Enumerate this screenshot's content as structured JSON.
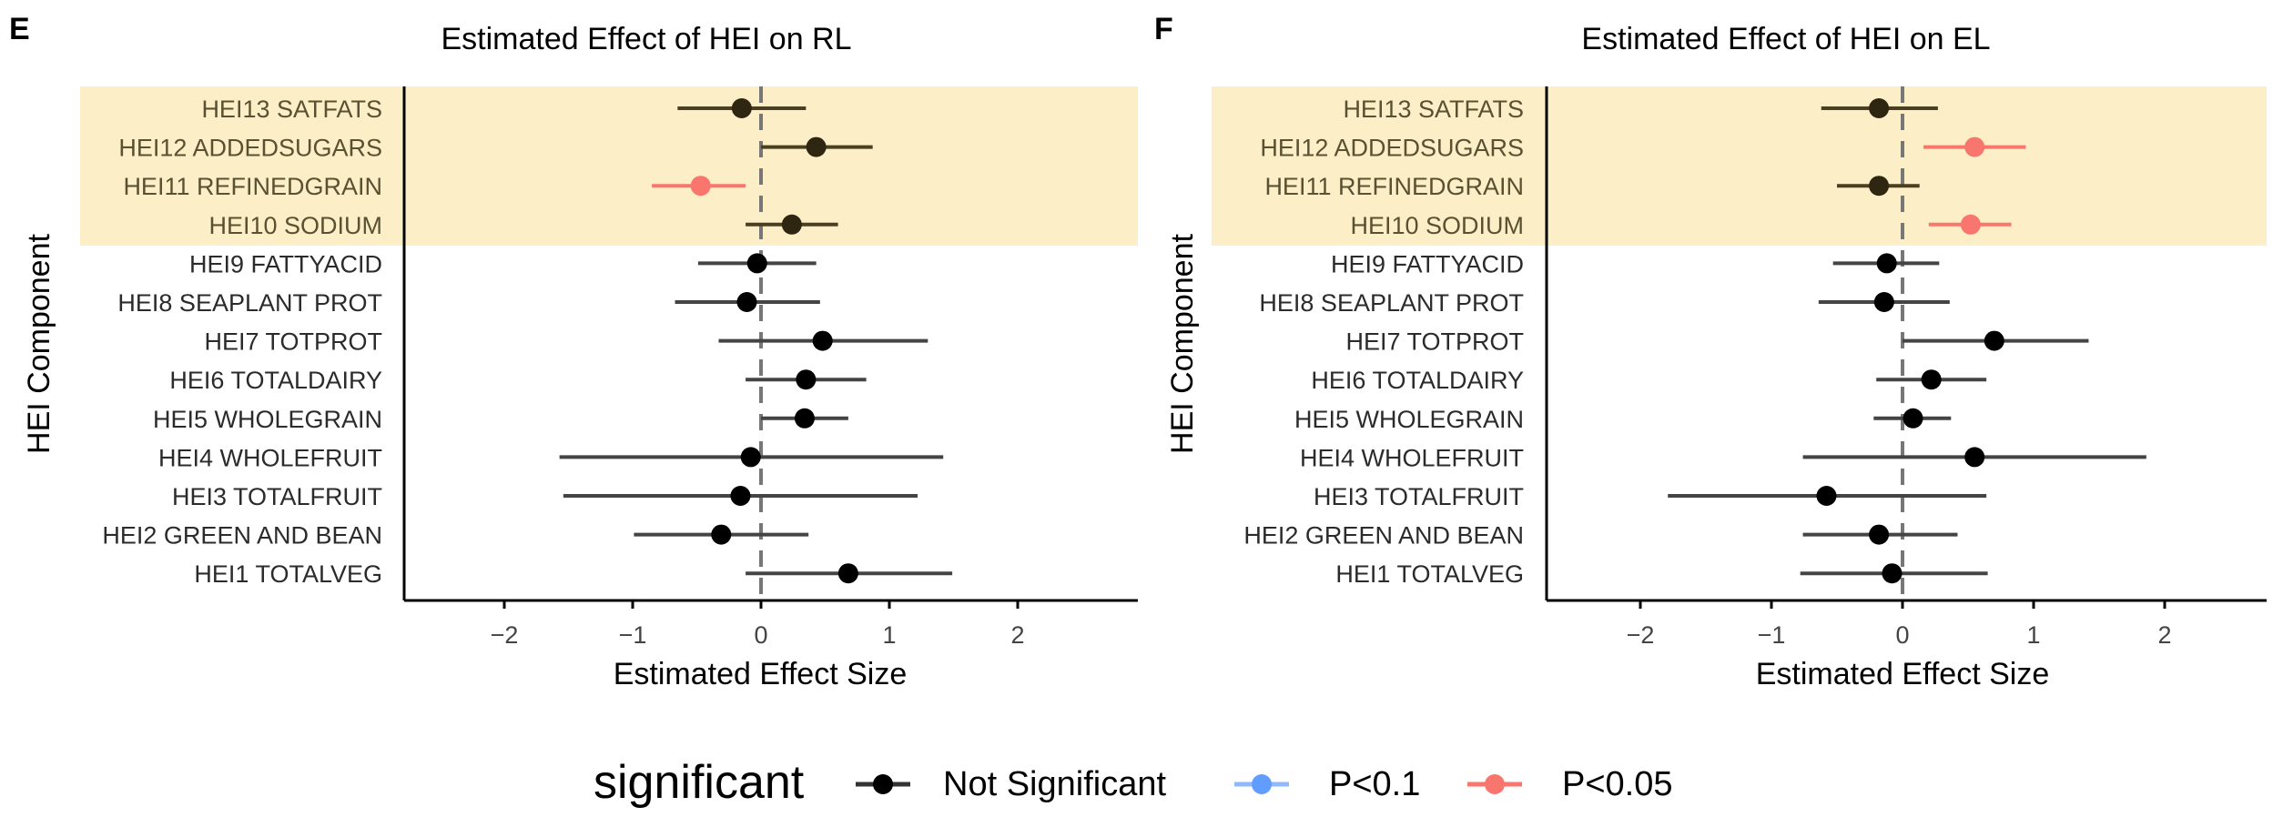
{
  "figure": {
    "legend": {
      "title": "significant",
      "entries": [
        {
          "label": "Not Significant",
          "color": "#000000",
          "line_color": "#333333"
        },
        {
          "label": "P<0.1",
          "color": "#619CFF",
          "line_color": "#8FB8FF"
        },
        {
          "label": "P<0.05",
          "color": "#F8766D",
          "line_color": "#F8766D"
        }
      ],
      "placement": "bottom-center"
    },
    "highlight_color": "#FCEFC7"
  },
  "chart_data": [
    {
      "type": "forest",
      "panel_label": "E",
      "title": "Estimated Effect of HEI on RL",
      "xlabel": "Estimated Effect Size",
      "ylabel": "HEI Component",
      "xlim": [
        -2.8,
        2.8
      ],
      "xticks": [
        -2,
        -1,
        0,
        1,
        2
      ],
      "xtick_labels": [
        "−2",
        "−1",
        "0",
        "1",
        "2"
      ],
      "reference_line": 0,
      "grid": false,
      "highlighted_rows": [
        "HEI13 SATFATS",
        "HEI12 ADDEDSUGARS",
        "HEI11 REFINEDGRAIN",
        "HEI10 SODIUM"
      ],
      "rows": [
        {
          "label": "HEI13 SATFATS",
          "estimate": -0.15,
          "lower": -0.65,
          "upper": 0.35,
          "significance": "Not Significant"
        },
        {
          "label": "HEI12 ADDEDSUGARS",
          "estimate": 0.43,
          "lower": 0.0,
          "upper": 0.87,
          "significance": "Not Significant"
        },
        {
          "label": "HEI11 REFINEDGRAIN",
          "estimate": -0.47,
          "lower": -0.85,
          "upper": -0.12,
          "significance": "P<0.05"
        },
        {
          "label": "HEI10 SODIUM",
          "estimate": 0.24,
          "lower": -0.12,
          "upper": 0.6,
          "significance": "Not Significant"
        },
        {
          "label": "HEI9 FATTYACID",
          "estimate": -0.03,
          "lower": -0.49,
          "upper": 0.43,
          "significance": "Not Significant"
        },
        {
          "label": "HEI8 SEAPLANT PROT",
          "estimate": -0.11,
          "lower": -0.67,
          "upper": 0.46,
          "significance": "Not Significant"
        },
        {
          "label": "HEI7 TOTPROT",
          "estimate": 0.48,
          "lower": -0.33,
          "upper": 1.3,
          "significance": "Not Significant"
        },
        {
          "label": "HEI6 TOTALDAIRY",
          "estimate": 0.35,
          "lower": -0.12,
          "upper": 0.82,
          "significance": "Not Significant"
        },
        {
          "label": "HEI5 WHOLEGRAIN",
          "estimate": 0.34,
          "lower": 0.0,
          "upper": 0.68,
          "significance": "Not Significant"
        },
        {
          "label": "HEI4 WHOLEFRUIT",
          "estimate": -0.08,
          "lower": -1.57,
          "upper": 1.42,
          "significance": "Not Significant"
        },
        {
          "label": "HEI3 TOTALFRUIT",
          "estimate": -0.16,
          "lower": -1.54,
          "upper": 1.22,
          "significance": "Not Significant"
        },
        {
          "label": "HEI2 GREEN AND BEAN",
          "estimate": -0.31,
          "lower": -0.99,
          "upper": 0.37,
          "significance": "Not Significant"
        },
        {
          "label": "HEI1 TOTALVEG",
          "estimate": 0.68,
          "lower": -0.12,
          "upper": 1.49,
          "significance": "Not Significant"
        }
      ]
    },
    {
      "type": "forest",
      "panel_label": "F",
      "title": "Estimated Effect of HEI on EL",
      "xlabel": "Estimated Effect Size",
      "ylabel": "HEI Component",
      "xlim": [
        -2.8,
        2.8
      ],
      "xticks": [
        -2,
        -1,
        0,
        1,
        2
      ],
      "xtick_labels": [
        "−2",
        "−1",
        "0",
        "1",
        "2"
      ],
      "reference_line": 0,
      "grid": false,
      "highlighted_rows": [
        "HEI13 SATFATS",
        "HEI12 ADDEDSUGARS",
        "HEI11 REFINEDGRAIN",
        "HEI10 SODIUM"
      ],
      "rows": [
        {
          "label": "HEI13 SATFATS",
          "estimate": -0.18,
          "lower": -0.62,
          "upper": 0.27,
          "significance": "Not Significant"
        },
        {
          "label": "HEI12 ADDEDSUGARS",
          "estimate": 0.55,
          "lower": 0.16,
          "upper": 0.94,
          "significance": "P<0.05"
        },
        {
          "label": "HEI11 REFINEDGRAIN",
          "estimate": -0.18,
          "lower": -0.5,
          "upper": 0.13,
          "significance": "Not Significant"
        },
        {
          "label": "HEI10 SODIUM",
          "estimate": 0.52,
          "lower": 0.2,
          "upper": 0.83,
          "significance": "P<0.05"
        },
        {
          "label": "HEI9 FATTYACID",
          "estimate": -0.12,
          "lower": -0.53,
          "upper": 0.28,
          "significance": "Not Significant"
        },
        {
          "label": "HEI8 SEAPLANT PROT",
          "estimate": -0.14,
          "lower": -0.64,
          "upper": 0.36,
          "significance": "Not Significant"
        },
        {
          "label": "HEI7 TOTPROT",
          "estimate": 0.7,
          "lower": 0.0,
          "upper": 1.42,
          "significance": "Not Significant"
        },
        {
          "label": "HEI6 TOTALDAIRY",
          "estimate": 0.22,
          "lower": -0.2,
          "upper": 0.64,
          "significance": "Not Significant"
        },
        {
          "label": "HEI5 WHOLEGRAIN",
          "estimate": 0.08,
          "lower": -0.22,
          "upper": 0.37,
          "significance": "Not Significant"
        },
        {
          "label": "HEI4 WHOLEFRUIT",
          "estimate": 0.55,
          "lower": -0.76,
          "upper": 1.86,
          "significance": "Not Significant"
        },
        {
          "label": "HEI3 TOTALFRUIT",
          "estimate": -0.58,
          "lower": -1.79,
          "upper": 0.64,
          "significance": "Not Significant"
        },
        {
          "label": "HEI2 GREEN AND BEAN",
          "estimate": -0.18,
          "lower": -0.76,
          "upper": 0.42,
          "significance": "Not Significant"
        },
        {
          "label": "HEI1 TOTALVEG",
          "estimate": -0.08,
          "lower": -0.78,
          "upper": 0.65,
          "significance": "Not Significant"
        }
      ]
    }
  ]
}
